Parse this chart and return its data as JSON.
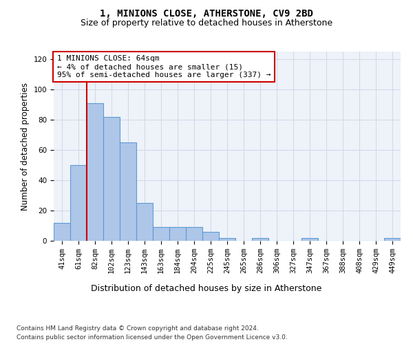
{
  "title": "1, MINIONS CLOSE, ATHERSTONE, CV9 2BD",
  "subtitle": "Size of property relative to detached houses in Atherstone",
  "xlabel_bottom": "Distribution of detached houses by size in Atherstone",
  "ylabel": "Number of detached properties",
  "categories": [
    "41sqm",
    "61sqm",
    "82sqm",
    "102sqm",
    "123sqm",
    "143sqm",
    "163sqm",
    "184sqm",
    "204sqm",
    "225sqm",
    "245sqm",
    "265sqm",
    "286sqm",
    "306sqm",
    "327sqm",
    "347sqm",
    "367sqm",
    "388sqm",
    "408sqm",
    "429sqm",
    "449sqm"
  ],
  "values": [
    12,
    50,
    91,
    82,
    65,
    25,
    9,
    9,
    9,
    6,
    2,
    0,
    2,
    0,
    0,
    2,
    0,
    0,
    0,
    0,
    2
  ],
  "bar_color": "#aec6e8",
  "bar_edge_color": "#5b9bd5",
  "bar_linewidth": 0.8,
  "ylim": [
    0,
    125
  ],
  "yticks": [
    0,
    20,
    40,
    60,
    80,
    100,
    120
  ],
  "red_line_x": 1.5,
  "red_line_color": "#cc0000",
  "annotation_text": "1 MINIONS CLOSE: 64sqm\n← 4% of detached houses are smaller (15)\n95% of semi-detached houses are larger (337) →",
  "annotation_box_color": "#ffffff",
  "annotation_box_edge": "#cc0000",
  "footnote1": "Contains HM Land Registry data © Crown copyright and database right 2024.",
  "footnote2": "Contains public sector information licensed under the Open Government Licence v3.0.",
  "grid_color": "#d0d8e8",
  "background_color": "#eef2f9",
  "title_fontsize": 10,
  "subtitle_fontsize": 9,
  "tick_fontsize": 7.5,
  "ylabel_fontsize": 8.5,
  "annotation_fontsize": 8,
  "footnote_fontsize": 6.5
}
